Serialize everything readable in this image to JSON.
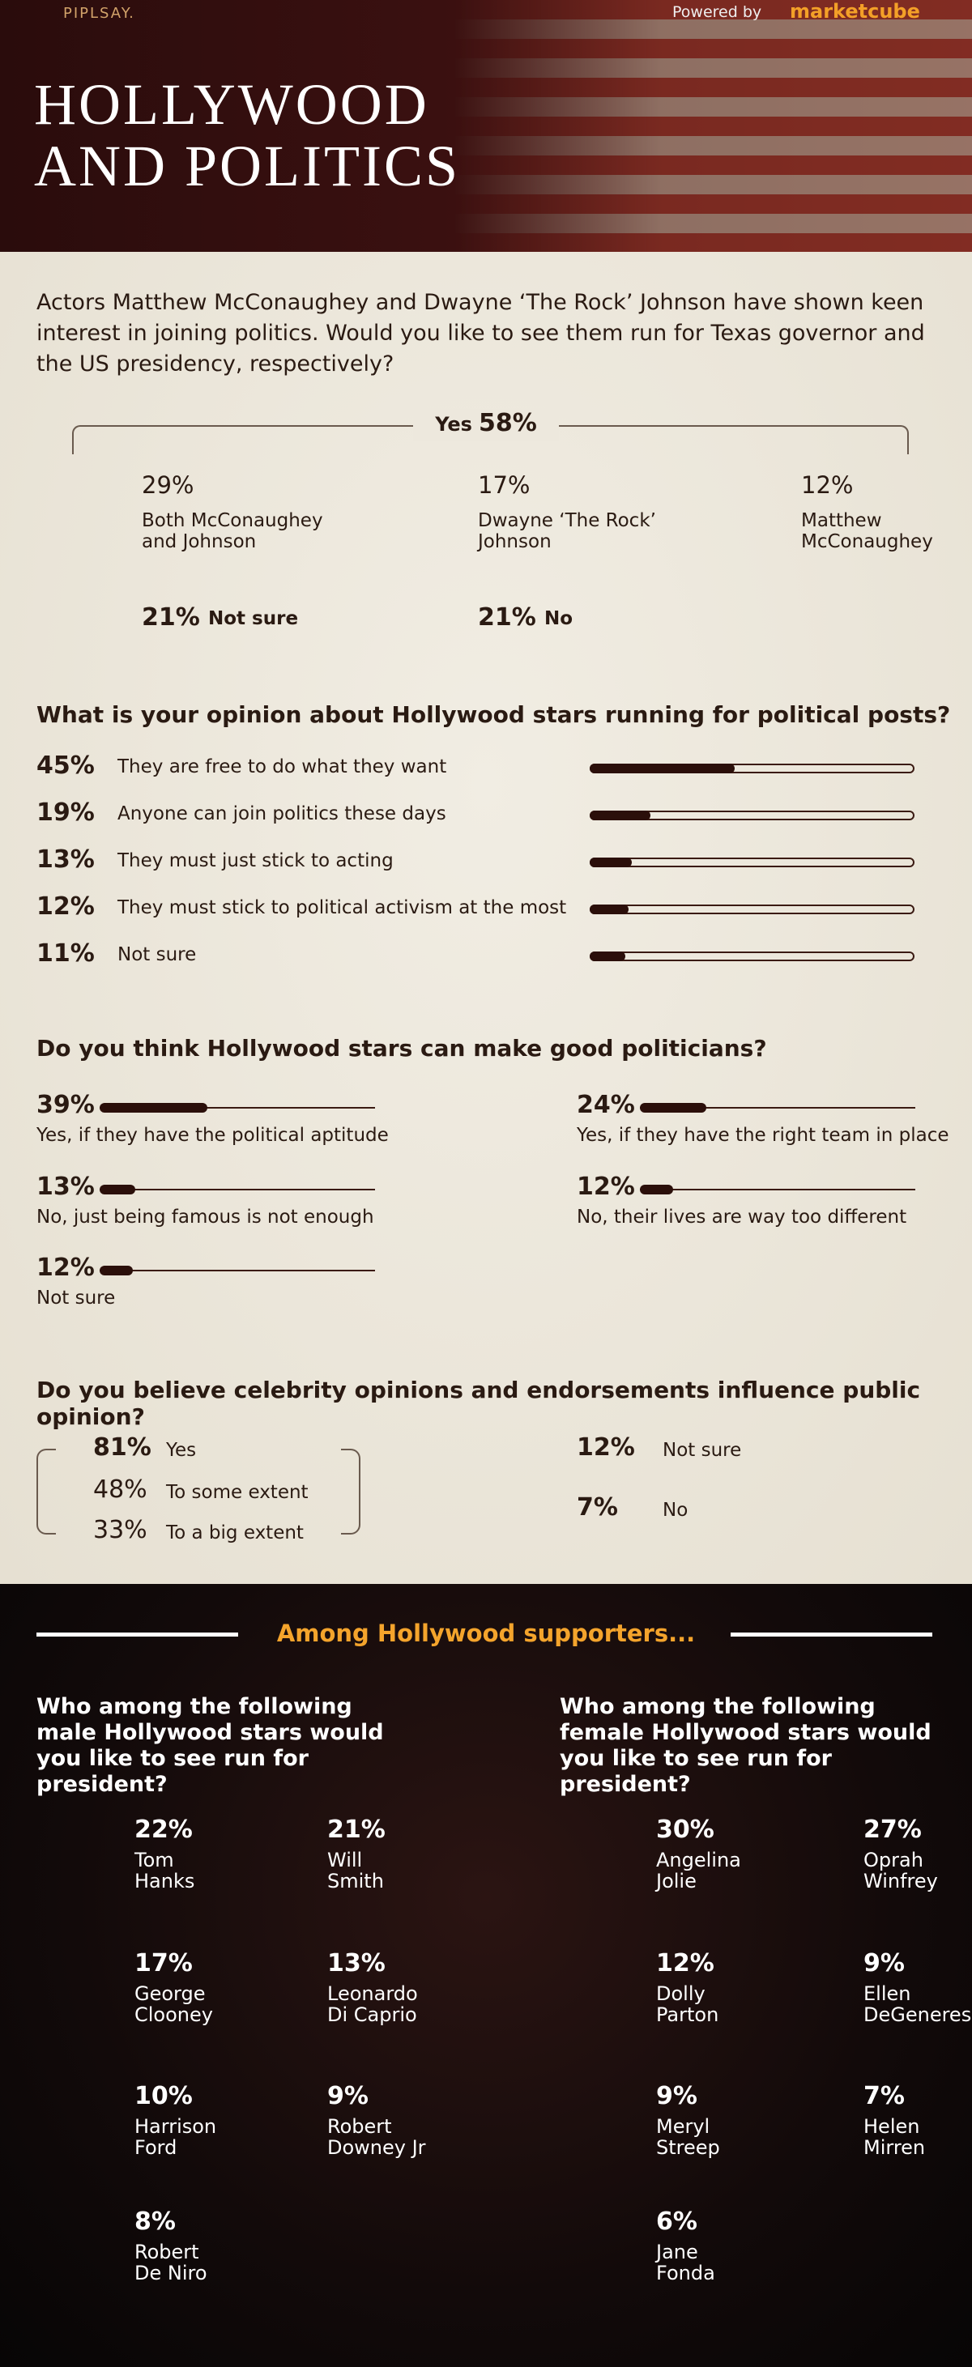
{
  "header": {
    "brand": "PIPLSAY.",
    "powered_by": "Powered by",
    "partner": "marketcube",
    "title_line1": "HOLLYWOOD",
    "title_line2": "AND POLITICS"
  },
  "q1": {
    "question": "Actors Matthew McConaughey and Dwayne ‘The Rock’ Johnson have shown keen interest in joining politics. Would you like to see them run for Texas governor and the US presidency, respectively?",
    "yes_label": "Yes",
    "yes_pct": "58%",
    "options": [
      {
        "pct": "29%",
        "label": "Both McConaughey\nand Johnson"
      },
      {
        "pct": "17%",
        "label": "Dwayne ‘The Rock’\nJohnson"
      },
      {
        "pct": "12%",
        "label": "Matthew\nMcConaughey"
      }
    ],
    "others": [
      {
        "pct": "21%",
        "label": "Not sure"
      },
      {
        "pct": "21%",
        "label": "No"
      }
    ]
  },
  "q2": {
    "question": "What is your opinion about Hollywood stars running for political posts?",
    "options": [
      {
        "value": 45,
        "label": "45%",
        "text": "They are free to do what they want"
      },
      {
        "value": 19,
        "label": "19%",
        "text": "Anyone can join politics these days"
      },
      {
        "value": 13,
        "label": "13%",
        "text": "They must just stick to acting"
      },
      {
        "value": 12,
        "label": "12%",
        "text": "They must stick to political activism at the most"
      },
      {
        "value": 11,
        "label": "11%",
        "text": "Not sure"
      }
    ]
  },
  "q3": {
    "question": "Do you think Hollywood stars can make good politicians?",
    "options": [
      {
        "value": 39,
        "label": "39%",
        "text": "Yes, if they have the political aptitude"
      },
      {
        "value": 24,
        "label": "24%",
        "text": "Yes, if they have the right team in place"
      },
      {
        "value": 13,
        "label": "13%",
        "text": "No, just being famous is not enough"
      },
      {
        "value": 12,
        "label": "12%",
        "text": "No, their lives are way too different"
      },
      {
        "value": 12,
        "label": "12%",
        "text": "Not sure"
      }
    ]
  },
  "q4": {
    "question": "Do you believe celebrity opinions and endorsements influence public opinion?",
    "left": [
      {
        "pct": "81%",
        "label": "Yes"
      },
      {
        "pct": "48%",
        "label": "To some extent"
      },
      {
        "pct": "33%",
        "label": "To a big extent"
      }
    ],
    "right": [
      {
        "pct": "12%",
        "label": "Not sure"
      },
      {
        "pct": "7%",
        "label": "No"
      }
    ]
  },
  "supporters": {
    "heading": "Among Hollywood supporters...",
    "male": {
      "question": "Who among the following male Hollywood stars would you like to see run for president?",
      "people": [
        {
          "pct": "22%",
          "name": "Tom\nHanks"
        },
        {
          "pct": "21%",
          "name": "Will\nSmith"
        },
        {
          "pct": "17%",
          "name": "George\nClooney"
        },
        {
          "pct": "13%",
          "name": "Leonardo\nDi Caprio"
        },
        {
          "pct": "10%",
          "name": "Harrison\nFord"
        },
        {
          "pct": "9%",
          "name": "Robert\nDowney Jr"
        },
        {
          "pct": "8%",
          "name": "Robert\nDe Niro"
        }
      ]
    },
    "female": {
      "question": "Who among the following female Hollywood stars would you like to see run for president?",
      "people": [
        {
          "pct": "30%",
          "name": "Angelina\nJolie"
        },
        {
          "pct": "27%",
          "name": "Oprah\nWinfrey"
        },
        {
          "pct": "12%",
          "name": "Dolly\nParton"
        },
        {
          "pct": "9%",
          "name": "Ellen\nDeGeneres"
        },
        {
          "pct": "9%",
          "name": "Meryl\nStreep"
        },
        {
          "pct": "7%",
          "name": "Helen\nMirren"
        },
        {
          "pct": "6%",
          "name": "Jane\nFonda"
        }
      ]
    }
  }
}
